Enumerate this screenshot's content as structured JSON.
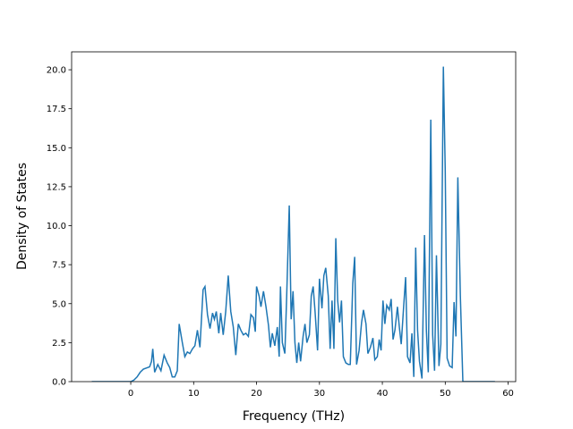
{
  "chart_data": {
    "type": "line",
    "x_label": "Frequency (THz)",
    "y_label": "Density of States",
    "xlim": [
      -9.4,
      61.2
    ],
    "ylim": [
      0,
      21.15
    ],
    "xticks": [
      0,
      10,
      20,
      30,
      40,
      50,
      60
    ],
    "yticks": [
      {
        "value": 0,
        "label": "0.0"
      },
      2.5,
      {
        "value": 5,
        "label": "5.0"
      },
      7.5,
      {
        "value": 10,
        "label": "10.0"
      },
      12.5,
      {
        "value": 15,
        "label": "15.0"
      },
      17.5,
      {
        "value": 20,
        "label": "20.0"
      }
    ],
    "series": [
      {
        "color": "#1f77b4",
        "x": [
          -6.2,
          0,
          0.5,
          1,
          1.5,
          2,
          3,
          3.3,
          3.5,
          3.8,
          4.3,
          4.8,
          5.3,
          5.8,
          6.2,
          6.6,
          7,
          7.4,
          7.7,
          8.2,
          8.6,
          9,
          9.4,
          9.8,
          10.2,
          10.6,
          11,
          11.5,
          11.8,
          12.2,
          12.6,
          13,
          13.3,
          13.6,
          14,
          14.3,
          14.7,
          15.1,
          15.5,
          15.9,
          16.3,
          16.7,
          17.1,
          17.5,
          17.9,
          18.3,
          18.7,
          19.1,
          19.5,
          19.8,
          20,
          20.4,
          20.7,
          21.1,
          21.5,
          21.9,
          22.2,
          22.5,
          22.9,
          23.3,
          23.6,
          23.8,
          24.1,
          24.5,
          24.8,
          25.2,
          25.5,
          25.8,
          26.1,
          26.4,
          26.7,
          27,
          27.4,
          27.7,
          28,
          28.4,
          28.7,
          29,
          29.3,
          29.7,
          30,
          30.4,
          30.7,
          31,
          31.4,
          31.7,
          32,
          32.3,
          32.6,
          32.9,
          33.2,
          33.5,
          33.8,
          34.2,
          34.6,
          34.9,
          35.3,
          35.6,
          35.9,
          36.3,
          36.7,
          37,
          37.4,
          37.7,
          38.1,
          38.5,
          38.8,
          39.2,
          39.5,
          39.8,
          40.1,
          40.4,
          40.7,
          41.1,
          41.4,
          41.7,
          42,
          42.4,
          42.7,
          43,
          43.4,
          43.7,
          44,
          44.4,
          44.7,
          45,
          45.3,
          45.6,
          45.9,
          46.3,
          46.7,
          47,
          47.3,
          47.7,
          48,
          48.3,
          48.6,
          49,
          49.3,
          49.7,
          50,
          50.3,
          50.7,
          51.1,
          51.4,
          51.7,
          52,
          52.4,
          52.8,
          57.9
        ],
        "values": [
          0,
          0,
          0.1,
          0.3,
          0.6,
          0.8,
          0.95,
          1.3,
          2.1,
          0.6,
          1.1,
          0.7,
          1.7,
          1.2,
          0.9,
          0.3,
          0.3,
          0.7,
          3.7,
          2.5,
          1.6,
          1.9,
          1.8,
          2.1,
          2.3,
          3.3,
          2.2,
          5.9,
          6.1,
          4.3,
          3.4,
          4.4,
          4.0,
          4.5,
          3.1,
          4.4,
          3.0,
          4.5,
          6.8,
          4.5,
          3.5,
          1.7,
          3.7,
          3.3,
          3.0,
          3.1,
          2.9,
          4.3,
          4.1,
          3.2,
          6.1,
          5.5,
          4.8,
          5.8,
          4.8,
          3.6,
          2.2,
          3.1,
          2.3,
          3.5,
          1.6,
          6.1,
          2.5,
          1.8,
          5.6,
          11.3,
          4.0,
          5.8,
          2.5,
          1.2,
          2.5,
          1.3,
          2.9,
          3.7,
          2.5,
          3.0,
          5.5,
          6.1,
          4.5,
          2.0,
          6.6,
          4.7,
          6.8,
          7.3,
          5.5,
          2.1,
          5.2,
          2.1,
          9.2,
          5.2,
          3.8,
          5.2,
          1.6,
          1.2,
          1.1,
          1.1,
          6.3,
          8.0,
          1.1,
          2.0,
          3.8,
          4.6,
          3.7,
          1.8,
          2.2,
          2.8,
          1.4,
          1.6,
          2.7,
          2.0,
          5.2,
          3.7,
          4.9,
          4.6,
          5.3,
          2.7,
          3.3,
          4.8,
          3.5,
          2.4,
          4.9,
          6.7,
          1.6,
          1.2,
          3.1,
          0.3,
          8.6,
          3.3,
          1.3,
          0.2,
          9.4,
          3.3,
          0.6,
          16.8,
          3.0,
          0.7,
          8.1,
          1.0,
          2.4,
          20.2,
          13.5,
          1.5,
          1.0,
          0.9,
          5.1,
          2.9,
          13.1,
          5.5,
          0,
          0
        ]
      }
    ]
  }
}
